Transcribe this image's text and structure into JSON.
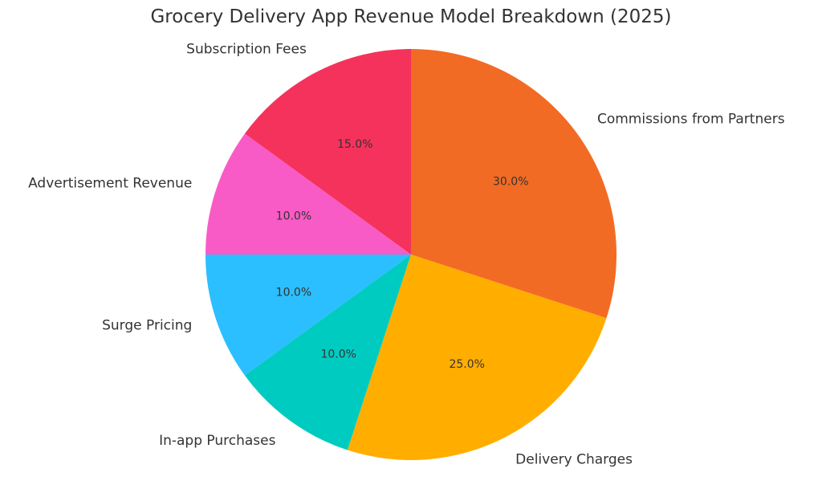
{
  "chart_data": {
    "type": "pie",
    "title": "Grocery Delivery App Revenue Model Breakdown (2025)",
    "start_angle_deg": 90,
    "direction": "counterclockwise",
    "slices": [
      {
        "label": "Subscription Fees",
        "value": 15.0,
        "pct_label": "15.0%",
        "color": "#F5325C"
      },
      {
        "label": "Advertisement Revenue",
        "value": 10.0,
        "pct_label": "10.0%",
        "color": "#F95BC6"
      },
      {
        "label": "Surge Pricing",
        "value": 10.0,
        "pct_label": "10.0%",
        "color": "#2BBFFF"
      },
      {
        "label": "In-app Purchases",
        "value": 10.0,
        "pct_label": "10.0%",
        "color": "#00CBC0"
      },
      {
        "label": "Delivery Charges",
        "value": 25.0,
        "pct_label": "25.0%",
        "color": "#FFAE00"
      },
      {
        "label": "Commissions from Partners",
        "value": 30.0,
        "pct_label": "30.0%",
        "color": "#F26B24"
      }
    ]
  }
}
